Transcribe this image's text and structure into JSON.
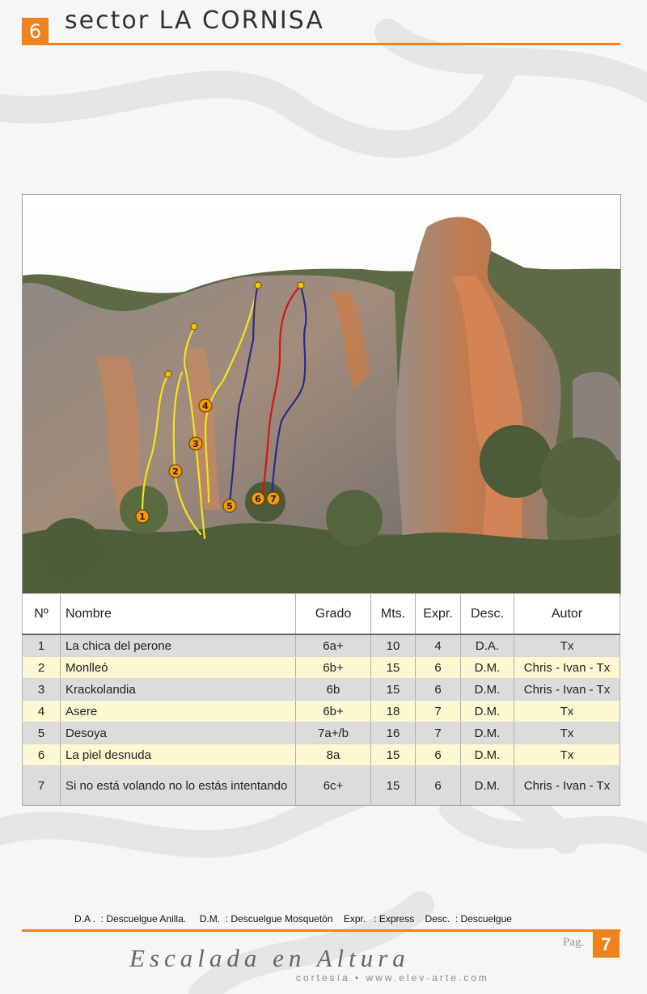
{
  "header": {
    "sector_number": "6",
    "sector_prefix": "sector",
    "sector_name": "LA CORNISA"
  },
  "photo": {
    "route_markers": [
      "1",
      "2",
      "3",
      "4",
      "5",
      "6",
      "7"
    ],
    "route_colors": {
      "1": "#f5e21a",
      "2": "#f5e21a",
      "3": "#f5e21a",
      "4": "#f5e21a",
      "5": "#2a2a8c",
      "6": "#d01616",
      "7": "#2a2a8c"
    },
    "marker_fill": "#f59a0c"
  },
  "table": {
    "headers": [
      "Nº",
      "Nombre",
      "Grado",
      "Mts.",
      "Expr.",
      "Desc.",
      "Autor"
    ],
    "rows": [
      {
        "num": "1",
        "name": "La chica del perone",
        "grade": "6a+",
        "mts": "10",
        "expr": "4",
        "desc": "D.A.",
        "author": "Tx"
      },
      {
        "num": "2",
        "name": "Monlleó",
        "grade": "6b+",
        "mts": "15",
        "expr": "6",
        "desc": "D.M.",
        "author": "Chris - Ivan - Tx"
      },
      {
        "num": "3",
        "name": "Krackolandia",
        "grade": "6b",
        "mts": "15",
        "expr": "6",
        "desc": "D.M.",
        "author": "Chris - Ivan - Tx"
      },
      {
        "num": "4",
        "name": "Asere",
        "grade": "6b+",
        "mts": "18",
        "expr": "7",
        "desc": "D.M.",
        "author": "Tx"
      },
      {
        "num": "5",
        "name": "Desoya",
        "grade": "7a+/b",
        "mts": "16",
        "expr": "7",
        "desc": "D.M.",
        "author": "Tx"
      },
      {
        "num": "6",
        "name": "La piel desnuda",
        "grade": "8a",
        "mts": "15",
        "expr": "6",
        "desc": "D.M.",
        "author": "Tx"
      },
      {
        "num": "7",
        "name": "Si no está volando no lo estás intentando",
        "grade": "6c+",
        "mts": "15",
        "expr": "6",
        "desc": "D.M.",
        "author": "Chris - Ivan - Tx"
      }
    ]
  },
  "legend": {
    "text": "D.A .  : Descuelgue Anilla.     D.M.  : Descuelgue Mosquetón    Expr.   : Express    Desc.  : Descuelgue"
  },
  "footer": {
    "page_label": "Pag.",
    "page_number": "7",
    "brand": "Escalada en Altura",
    "brand_sub": "cortesía • www.elev-arte.com"
  },
  "colors": {
    "accent": "#f0821e",
    "row_odd": "#dcdcdc",
    "row_even": "#fdf7d2"
  }
}
